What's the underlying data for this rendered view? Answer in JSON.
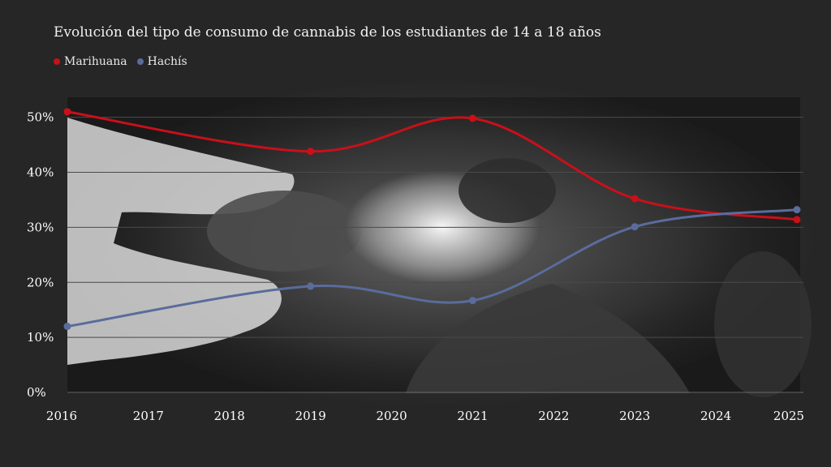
{
  "colors": {
    "background": "#262626",
    "marihuana": "#c8101a",
    "hachis": "#5a6c9c",
    "grid": "#4a4a4a"
  },
  "chart_data": {
    "type": "line",
    "title": "Evolución del tipo de consumo de cannabis de los estudiantes de 14 a 18 años",
    "xlabel": "",
    "ylabel": "",
    "x_ticks": [
      "2016",
      "2017",
      "2018",
      "2019",
      "2020",
      "2021",
      "2022",
      "2023",
      "2024",
      "2025"
    ],
    "y_ticks": [
      "0%",
      "10%",
      "20%",
      "30%",
      "40%",
      "50%"
    ],
    "xlim": [
      2016,
      2025
    ],
    "ylim": [
      0,
      50
    ],
    "grid": true,
    "legend_position": "top-left",
    "series": [
      {
        "name": "Marihuana",
        "color": "#c8101a",
        "x": [
          2016,
          2019,
          2021,
          2023,
          2025
        ],
        "y": [
          51,
          43.8,
          49.8,
          35.2,
          31.4
        ]
      },
      {
        "name": "Hachís",
        "color": "#5a6c9c",
        "x": [
          2016,
          2019,
          2021,
          2023,
          2025
        ],
        "y": [
          12,
          19.3,
          16.7,
          30.1,
          33.2
        ]
      }
    ]
  }
}
